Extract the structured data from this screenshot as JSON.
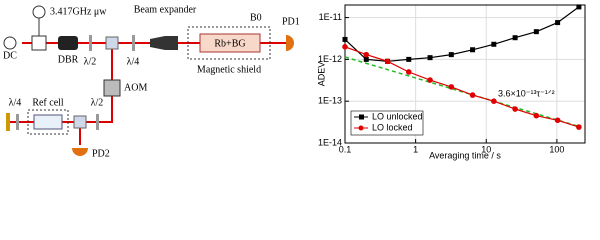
{
  "diagram": {
    "labels": {
      "dc": "DC",
      "microwave": "3.417GHz μw",
      "dbr": "DBR",
      "hwp1": "λ/2",
      "qwp1": "λ/4",
      "beam_expander": "Beam expander",
      "b0": "B0",
      "pd1": "PD1",
      "cell": "Rb+BG",
      "shield": "Magnetic shield",
      "aom": "AOM",
      "qwp2": "λ/4",
      "ref_cell": "Ref cell",
      "hwp2": "λ/2",
      "pd2": "PD2"
    }
  },
  "chart_data": {
    "type": "line",
    "log_x": true,
    "log_y": true,
    "grid": true,
    "legend": "lower left",
    "xlabel": "Averaging time / s",
    "ylabel": "ADEV",
    "annotation": "3.6×10⁻¹³τ⁻¹ᐟ²",
    "x": [
      0.1,
      0.2,
      0.4,
      0.8,
      1.6,
      3.2,
      6.4,
      12.8,
      25.6,
      51.2,
      102.4,
      204.8
    ],
    "series": [
      {
        "name": "LO unlocked",
        "color": "#000000",
        "marker": "square",
        "values": [
          3e-12,
          1e-12,
          9e-13,
          1e-12,
          1.1e-12,
          1.3e-12,
          1.7e-12,
          2.3e-12,
          3.3e-12,
          4.6e-12,
          7.6e-12,
          1.8e-11
        ]
      },
      {
        "name": "LO locked",
        "color": "#e00000",
        "marker": "circle",
        "values": [
          2e-12,
          1.3e-12,
          9e-13,
          5e-13,
          3.2e-13,
          2.2e-13,
          1.4e-13,
          1e-13,
          6.5e-14,
          4.5e-14,
          3.5e-14,
          2.4e-14
        ]
      }
    ],
    "fit_line": {
      "color": "#22bb22",
      "x": [
        0.1,
        204.8
      ],
      "values": [
        1.14e-12,
        2.5e-14
      ]
    },
    "xlim": [
      0.1,
      250
    ],
    "ylim": [
      1e-14,
      2e-11
    ],
    "xticks": [
      0.1,
      1,
      10,
      100
    ],
    "yticks": [
      {
        "value": 1e-14,
        "label": "1E-14"
      },
      {
        "value": 1e-13,
        "label": "1E-13"
      },
      {
        "value": 1e-12,
        "label": "1E-12"
      },
      {
        "value": 1e-11,
        "label": "1E-11"
      }
    ]
  }
}
